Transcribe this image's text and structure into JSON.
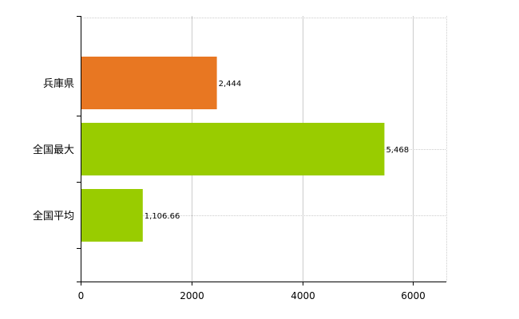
{
  "chart_data": {
    "type": "bar",
    "orientation": "horizontal",
    "categories": [
      "兵庫県",
      "全国最大",
      "全国平均"
    ],
    "values": [
      2444,
      5468,
      1106.66
    ],
    "value_labels": [
      "2,444",
      "5,468",
      "1,106.66"
    ],
    "colors": [
      "#e87722",
      "#99cc00",
      "#99cc00"
    ],
    "xlim": [
      0,
      6600
    ],
    "xticks": [
      0,
      2000,
      4000,
      6000
    ],
    "xtick_labels": [
      "0",
      "2000",
      "4000",
      "6000"
    ],
    "grid": true,
    "legend": "none"
  }
}
